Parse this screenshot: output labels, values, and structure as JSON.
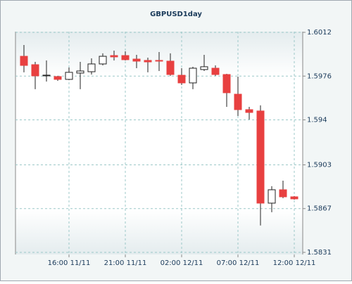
{
  "chart_data": {
    "type": "candlestick",
    "title": "GBPUSD1day",
    "categories": [
      null,
      null,
      null,
      null,
      "16:00 11/11",
      null,
      null,
      null,
      null,
      "21:00 11/11",
      null,
      null,
      null,
      null,
      "02:00 12/11",
      null,
      null,
      null,
      null,
      "07:00 12/11",
      null,
      null,
      null,
      null,
      "12:00 12/11"
    ],
    "open": [
      1.59923,
      1.59854,
      1.59762,
      1.59756,
      1.59733,
      1.59785,
      1.59796,
      1.5986,
      1.59929,
      1.59929,
      1.599,
      1.59889,
      1.59889,
      1.59883,
      1.59767,
      1.59704,
      1.59814,
      1.59825,
      1.59773,
      1.59611,
      1.59484,
      1.59473,
      1.58715,
      1.58825,
      1.58767
    ],
    "high": [
      1.60016,
      1.59877,
      1.59889,
      1.59762,
      1.59831,
      1.59877,
      1.59906,
      1.59947,
      1.5997,
      1.59964,
      1.59935,
      1.59912,
      1.59958,
      1.59947,
      1.59825,
      1.59837,
      1.59935,
      1.59848,
      1.59779,
      1.59756,
      1.59507,
      1.59519,
      1.58854,
      1.589,
      1.58773
    ],
    "low": [
      1.59791,
      1.59652,
      1.59715,
      1.59721,
      1.59727,
      1.59652,
      1.59773,
      1.59848,
      1.59889,
      1.59889,
      1.59825,
      1.59791,
      1.59802,
      1.59762,
      1.59687,
      1.59652,
      1.59802,
      1.59762,
      1.59507,
      1.59432,
      1.59403,
      1.58531,
      1.5864,
      1.58756,
      1.58744
    ],
    "close": [
      1.59848,
      1.59762,
      1.59768,
      1.59733,
      1.59791,
      1.59802,
      1.5986,
      1.59923,
      1.59918,
      1.59895,
      1.59883,
      1.59877,
      1.59883,
      1.59773,
      1.59704,
      1.59825,
      1.59837,
      1.59773,
      1.59623,
      1.59484,
      1.59461,
      1.58715,
      1.58825,
      1.58767,
      1.5875
    ],
    "up_color": "#ffffff",
    "down_color": "#e84040",
    "wick_color": "#222222",
    "grid_color": "#9cc8c8",
    "ylim": [
      1.5831,
      1.6012
    ],
    "yticks": [
      1.5831,
      1.5867,
      1.5903,
      1.594,
      1.5976,
      1.6012
    ],
    "grid": true,
    "y_axis_side": "right"
  }
}
